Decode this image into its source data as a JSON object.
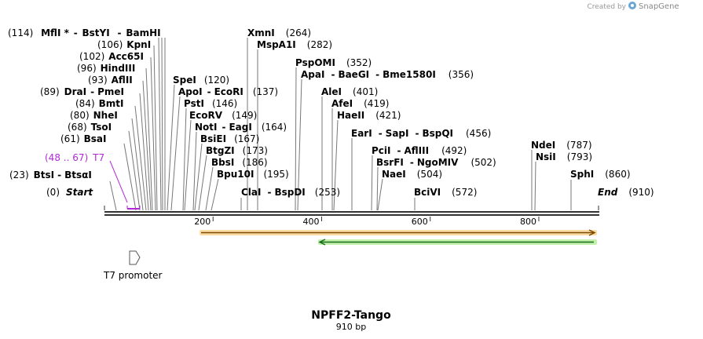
{
  "credit": {
    "created_by": "Created by",
    "brand": "SnapGene"
  },
  "sequence": {
    "name": "NPFF2-Tango",
    "length_label": "910 bp",
    "length": 910
  },
  "ruler": {
    "ticks": [
      {
        "pos": 200,
        "label": "200"
      },
      {
        "pos": 400,
        "label": "400"
      },
      {
        "pos": 600,
        "label": "600"
      },
      {
        "pos": 800,
        "label": "800"
      }
    ]
  },
  "ends": [
    {
      "pos": 0,
      "label": "Start",
      "num": "(0)"
    },
    {
      "pos": 910,
      "label": "End",
      "num": "(910)"
    }
  ],
  "primer_label": {
    "range": "(48 .. 67)",
    "name": "T7"
  },
  "promoter": {
    "label": "T7 promoter"
  },
  "cut_labels": [
    {
      "num": "(114)",
      "names": [
        "MflI *",
        "BstYI",
        "BamHI"
      ],
      "pos": [
        114,
        114,
        114
      ]
    },
    {
      "num": "(106)",
      "names": [
        "KpnI"
      ],
      "pos": [
        106
      ]
    },
    {
      "num": "(102)",
      "names": [
        "Acc65I"
      ],
      "pos": [
        102
      ]
    },
    {
      "num": "(96)",
      "names": [
        "HindIII"
      ],
      "pos": [
        96
      ]
    },
    {
      "num": "(93)",
      "names": [
        "AflII"
      ],
      "pos": [
        93
      ]
    },
    {
      "num": "(89)",
      "names": [
        "DraI",
        "PmeI"
      ],
      "pos": [
        89
      ]
    },
    {
      "num": "(84)",
      "names": [
        "BmtI"
      ],
      "pos": [
        84
      ]
    },
    {
      "num": "(80)",
      "names": [
        "NheI"
      ],
      "pos": [
        80
      ]
    },
    {
      "num": "(68)",
      "names": [
        "TsoI"
      ],
      "pos": [
        68
      ]
    },
    {
      "num": "(61)",
      "names": [
        "BsaI"
      ],
      "pos": [
        61
      ]
    },
    {
      "num": "(23)",
      "names": [
        "BtsI",
        "BtsαI"
      ],
      "pos": [
        23
      ]
    },
    {
      "num": "(120)",
      "names": [
        "SpeI"
      ],
      "pos": [
        120
      ]
    },
    {
      "num": "(137)",
      "names": [
        "ApoI",
        "EcoRI"
      ],
      "pos": [
        137
      ]
    },
    {
      "num": "(146)",
      "names": [
        "PstI"
      ],
      "pos": [
        146
      ]
    },
    {
      "num": "(149)",
      "names": [
        "EcoRV"
      ],
      "pos": [
        149
      ]
    },
    {
      "num": "(164)",
      "names": [
        "NotI",
        "EagI"
      ],
      "pos": [
        164
      ]
    },
    {
      "num": "(167)",
      "names": [
        "BsiEI"
      ],
      "pos": [
        167
      ]
    },
    {
      "num": "(173)",
      "names": [
        "BtgZI"
      ],
      "pos": [
        173
      ]
    },
    {
      "num": "(186)",
      "names": [
        "BbsI"
      ],
      "pos": [
        186
      ]
    },
    {
      "num": "(195)",
      "names": [
        "Bpu10I"
      ],
      "pos": [
        195
      ]
    },
    {
      "num": "(264)",
      "names": [
        "XmnI"
      ],
      "pos": [
        264
      ]
    },
    {
      "num": "(282)",
      "names": [
        "MspA1I"
      ],
      "pos": [
        282
      ]
    },
    {
      "num": "(253)",
      "names": [
        "ClaI",
        "BspDI"
      ],
      "pos": [
        253
      ]
    },
    {
      "num": "(352)",
      "names": [
        "PspOMI"
      ],
      "pos": [
        352
      ]
    },
    {
      "num": "(356)",
      "names": [
        "ApaI",
        "BaeGI",
        "Bme1580I"
      ],
      "pos": [
        356
      ]
    },
    {
      "num": "(401)",
      "names": [
        "AleI"
      ],
      "pos": [
        401
      ]
    },
    {
      "num": "(419)",
      "names": [
        "AfeI"
      ],
      "pos": [
        419
      ]
    },
    {
      "num": "(421)",
      "names": [
        "HaeII"
      ],
      "pos": [
        421
      ]
    },
    {
      "num": "(456)",
      "names": [
        "EarI",
        "SapI",
        "BspQI"
      ],
      "pos": [
        456
      ]
    },
    {
      "num": "(492)",
      "names": [
        "PciI",
        "AflIII"
      ],
      "pos": [
        492
      ]
    },
    {
      "num": "(502)",
      "names": [
        "BsrFI",
        "NgoMIV"
      ],
      "pos": [
        502
      ]
    },
    {
      "num": "(504)",
      "names": [
        "NaeI"
      ],
      "pos": [
        504
      ]
    },
    {
      "num": "(572)",
      "names": [
        "BciVI"
      ],
      "pos": [
        572
      ]
    },
    {
      "num": "(787)",
      "names": [
        "NdeI"
      ],
      "pos": [
        787
      ]
    },
    {
      "num": "(793)",
      "names": [
        "NsiI"
      ],
      "pos": [
        793
      ]
    },
    {
      "num": "(860)",
      "names": [
        "SphI"
      ],
      "pos": [
        860
      ]
    }
  ],
  "colors": {
    "orange": "#f0a83a",
    "green": "#3fbf3f",
    "primer": "#b22ad6",
    "line": "#777777"
  }
}
